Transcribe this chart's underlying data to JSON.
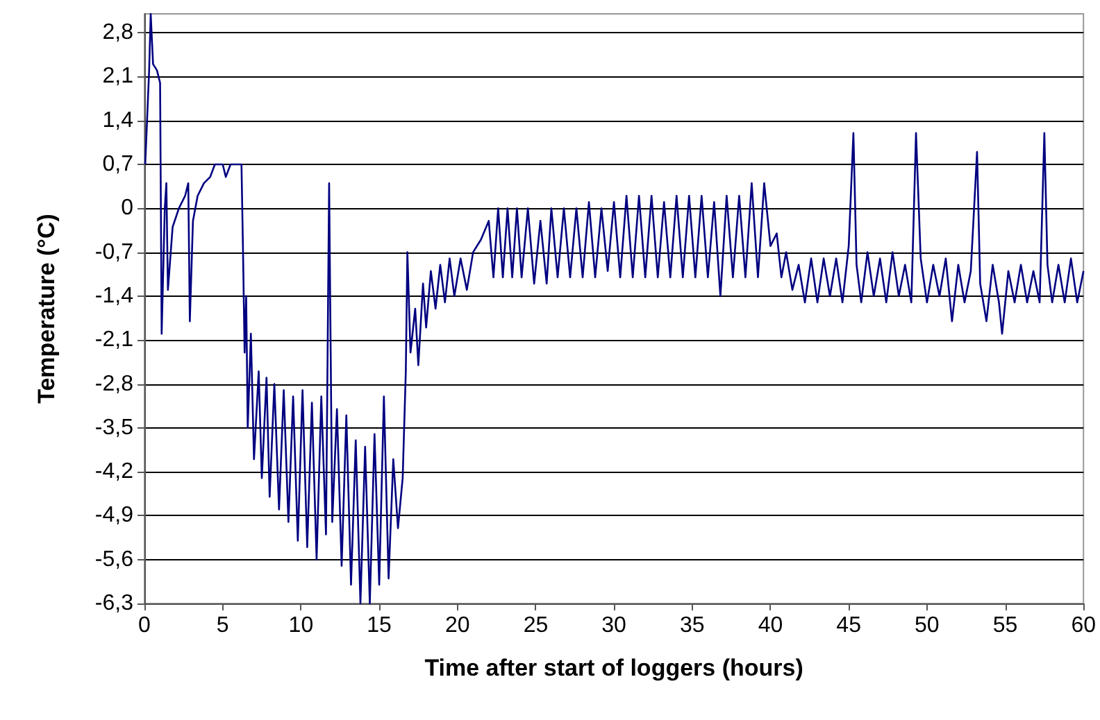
{
  "chart_data": {
    "type": "line",
    "xlabel": "Time after start of loggers (hours)",
    "ylabel": "Temperature (°C)",
    "xlim": [
      0,
      60
    ],
    "xticks": [
      0,
      5,
      10,
      15,
      20,
      25,
      30,
      35,
      40,
      45,
      50,
      55,
      60
    ],
    "ylim": [
      -6.3,
      3.1
    ],
    "yticks": [
      {
        "value": -6.3,
        "label": "-6,3"
      },
      {
        "value": -5.6,
        "label": "-5,6"
      },
      {
        "value": -4.9,
        "label": "-4,9"
      },
      {
        "value": -4.2,
        "label": "-4,2"
      },
      {
        "value": -3.5,
        "label": "-3,5"
      },
      {
        "value": -2.8,
        "label": "-2,8"
      },
      {
        "value": -2.1,
        "label": "-2,1"
      },
      {
        "value": -1.4,
        "label": "-1,4"
      },
      {
        "value": -0.7,
        "label": "-0,7"
      },
      {
        "value": 0,
        "label": "0"
      },
      {
        "value": 0.7,
        "label": "0,7"
      },
      {
        "value": 1.4,
        "label": "1,4"
      },
      {
        "value": 2.1,
        "label": "2,1"
      },
      {
        "value": 2.8,
        "label": "2,8"
      }
    ],
    "grid": "y",
    "marker": "none",
    "line_style": "solid",
    "series": [
      {
        "color": "#000080",
        "x": [
          0.05,
          0.3,
          0.4,
          0.55,
          0.8,
          1.0,
          1.1,
          1.3,
          1.4,
          1.5,
          1.8,
          2.2,
          2.6,
          2.8,
          2.9,
          3.1,
          3.4,
          3.8,
          4.2,
          4.5,
          5.0,
          5.2,
          5.5,
          6.2,
          6.3,
          6.4,
          6.5,
          6.6,
          6.8,
          7.0,
          7.3,
          7.5,
          7.8,
          8.0,
          8.3,
          8.6,
          8.9,
          9.2,
          9.5,
          9.8,
          10.1,
          10.4,
          10.7,
          11.0,
          11.3,
          11.6,
          11.8,
          12.0,
          12.3,
          12.6,
          12.9,
          13.2,
          13.5,
          13.8,
          14.1,
          14.4,
          14.7,
          15.0,
          15.3,
          15.6,
          15.9,
          16.2,
          16.5,
          16.7,
          16.8,
          17.0,
          17.3,
          17.5,
          17.8,
          18.0,
          18.3,
          18.6,
          18.9,
          19.2,
          19.5,
          19.8,
          20.2,
          20.6,
          21.0,
          21.5,
          22.0,
          22.3,
          22.6,
          22.9,
          23.2,
          23.5,
          23.8,
          24.1,
          24.5,
          24.9,
          25.3,
          25.7,
          26.0,
          26.4,
          26.8,
          27.2,
          27.6,
          28.0,
          28.4,
          28.8,
          29.2,
          29.6,
          30.0,
          30.4,
          30.8,
          31.2,
          31.6,
          32.0,
          32.4,
          32.8,
          33.2,
          33.6,
          34.0,
          34.4,
          34.8,
          35.2,
          35.6,
          36.0,
          36.4,
          36.8,
          37.2,
          37.6,
          38.0,
          38.4,
          38.8,
          39.2,
          39.6,
          40.0,
          40.4,
          40.7,
          41.0,
          41.4,
          41.8,
          42.2,
          42.6,
          43.0,
          43.4,
          43.8,
          44.2,
          44.6,
          45.0,
          45.3,
          45.5,
          45.8,
          46.2,
          46.6,
          47.0,
          47.4,
          47.8,
          48.2,
          48.6,
          49.0,
          49.3,
          49.6,
          50.0,
          50.4,
          50.8,
          51.2,
          51.6,
          52.0,
          52.4,
          52.8,
          53.2,
          53.4,
          53.8,
          54.2,
          54.6,
          54.8,
          55.2,
          55.6,
          56.0,
          56.4,
          56.8,
          57.2,
          57.5,
          57.7,
          58.0,
          58.4,
          58.8,
          59.2,
          59.6,
          60.0
        ],
        "values": [
          0.7,
          2.2,
          3.1,
          2.3,
          2.2,
          2.0,
          -2.0,
          0.0,
          0.4,
          -1.3,
          -0.3,
          0.0,
          0.2,
          0.4,
          -1.8,
          -0.2,
          0.2,
          0.4,
          0.5,
          0.7,
          0.7,
          0.5,
          0.7,
          0.7,
          -0.7,
          -2.3,
          -1.4,
          -3.5,
          -2.0,
          -4.0,
          -2.6,
          -4.3,
          -2.7,
          -4.6,
          -2.8,
          -4.8,
          -2.9,
          -5.0,
          -3.0,
          -5.3,
          -2.9,
          -5.4,
          -3.1,
          -5.6,
          -3.0,
          -5.2,
          0.4,
          -5.0,
          -3.2,
          -5.7,
          -3.3,
          -6.0,
          -3.7,
          -6.3,
          -3.8,
          -6.3,
          -3.6,
          -6.0,
          -3.0,
          -5.9,
          -4.0,
          -5.1,
          -4.3,
          -2.6,
          -0.7,
          -2.3,
          -1.6,
          -2.5,
          -1.2,
          -1.9,
          -1.0,
          -1.6,
          -0.9,
          -1.5,
          -0.8,
          -1.4,
          -0.8,
          -1.3,
          -0.7,
          -0.5,
          -0.2,
          -1.1,
          0.0,
          -1.1,
          0.0,
          -1.1,
          0.0,
          -1.1,
          0.0,
          -1.2,
          -0.2,
          -1.2,
          0.0,
          -1.1,
          0.0,
          -1.1,
          0.0,
          -1.1,
          0.1,
          -1.1,
          0.0,
          -1.0,
          0.1,
          -1.1,
          0.2,
          -1.1,
          0.2,
          -1.1,
          0.2,
          -1.1,
          0.1,
          -1.1,
          0.2,
          -1.1,
          0.2,
          -1.1,
          0.2,
          -1.1,
          0.1,
          -1.4,
          0.2,
          -1.1,
          0.2,
          -1.1,
          0.4,
          -1.1,
          0.4,
          -0.6,
          -0.4,
          -1.1,
          -0.7,
          -1.3,
          -0.9,
          -1.5,
          -0.8,
          -1.5,
          -0.8,
          -1.4,
          -0.8,
          -1.5,
          -0.6,
          1.2,
          -0.9,
          -1.5,
          -0.7,
          -1.4,
          -0.8,
          -1.5,
          -0.7,
          -1.4,
          -0.9,
          -1.5,
          1.2,
          -0.8,
          -1.5,
          -0.9,
          -1.4,
          -0.8,
          -1.8,
          -0.9,
          -1.5,
          -1.0,
          0.9,
          -1.2,
          -1.8,
          -0.9,
          -1.5,
          -2.0,
          -1.0,
          -1.5,
          -0.9,
          -1.5,
          -1.0,
          -1.5,
          1.2,
          -0.9,
          -1.5,
          -0.9,
          -1.5,
          -0.8,
          -1.5,
          -1.0
        ]
      }
    ]
  }
}
